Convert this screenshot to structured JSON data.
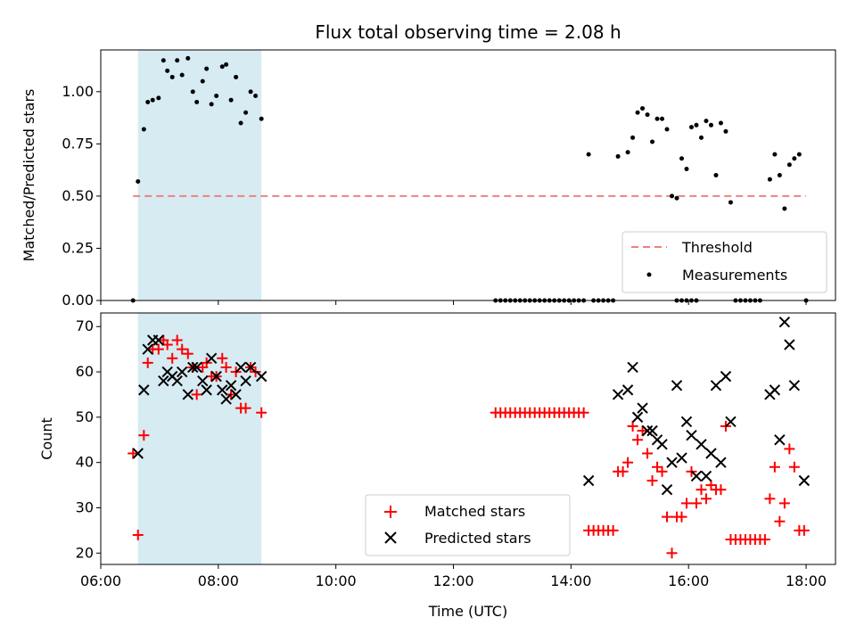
{
  "chart_data": [
    {
      "type": "scatter",
      "title": "Flux total observing time = 2.08 h",
      "ylabel": "Matched/Predicted stars",
      "xlabel": "",
      "xlim": [
        "06:00",
        "18:30"
      ],
      "ylim": [
        0,
        1.2
      ],
      "yticks": [
        "0.00",
        "0.25",
        "0.50",
        "0.75",
        "1.00"
      ],
      "shaded_interval": [
        "06:38",
        "08:44"
      ],
      "legend_position": "lower-right",
      "legend": {
        "threshold": "Threshold",
        "measurements": "Measurements"
      },
      "threshold": {
        "name": "Threshold",
        "value": 0.5,
        "x_range": [
          "06:33",
          "18:00"
        ],
        "color": "#f08080"
      },
      "series": [
        {
          "name": "Measurements",
          "color": "#000000",
          "points": [
            [
              "06:33",
              0.0
            ],
            [
              "06:38",
              0.57
            ],
            [
              "06:44",
              0.82
            ],
            [
              "06:48",
              0.95
            ],
            [
              "06:53",
              0.96
            ],
            [
              "06:59",
              0.97
            ],
            [
              "07:04",
              1.15
            ],
            [
              "07:08",
              1.1
            ],
            [
              "07:13",
              1.07
            ],
            [
              "07:18",
              1.15
            ],
            [
              "07:23",
              1.08
            ],
            [
              "07:29",
              1.16
            ],
            [
              "07:34",
              1.0
            ],
            [
              "07:38",
              0.95
            ],
            [
              "07:44",
              1.05
            ],
            [
              "07:48",
              1.11
            ],
            [
              "07:53",
              0.94
            ],
            [
              "07:58",
              0.98
            ],
            [
              "08:04",
              1.12
            ],
            [
              "08:08",
              1.13
            ],
            [
              "08:13",
              0.96
            ],
            [
              "08:18",
              1.07
            ],
            [
              "08:23",
              0.85
            ],
            [
              "08:28",
              0.9
            ],
            [
              "08:33",
              1.0
            ],
            [
              "08:38",
              0.98
            ],
            [
              "08:44",
              0.87
            ],
            [
              "14:18",
              0.7
            ],
            [
              "14:48",
              0.69
            ],
            [
              "14:58",
              0.71
            ],
            [
              "15:03",
              0.78
            ],
            [
              "15:08",
              0.9
            ],
            [
              "15:13",
              0.92
            ],
            [
              "15:18",
              0.89
            ],
            [
              "15:23",
              0.76
            ],
            [
              "15:28",
              0.87
            ],
            [
              "15:33",
              0.87
            ],
            [
              "15:38",
              0.82
            ],
            [
              "15:43",
              0.5
            ],
            [
              "15:48",
              0.49
            ],
            [
              "15:53",
              0.68
            ],
            [
              "15:58",
              0.63
            ],
            [
              "16:03",
              0.83
            ],
            [
              "16:08",
              0.84
            ],
            [
              "16:13",
              0.78
            ],
            [
              "16:18",
              0.86
            ],
            [
              "16:23",
              0.84
            ],
            [
              "16:28",
              0.6
            ],
            [
              "16:33",
              0.85
            ],
            [
              "16:38",
              0.81
            ],
            [
              "16:43",
              0.47
            ],
            [
              "17:23",
              0.58
            ],
            [
              "17:28",
              0.7
            ],
            [
              "17:33",
              0.6
            ],
            [
              "17:38",
              0.44
            ],
            [
              "17:43",
              0.65
            ],
            [
              "17:48",
              0.68
            ],
            [
              "17:53",
              0.7
            ],
            [
              "12:43",
              0
            ],
            [
              "12:48",
              0
            ],
            [
              "12:53",
              0
            ],
            [
              "12:58",
              0
            ],
            [
              "13:03",
              0
            ],
            [
              "13:08",
              0
            ],
            [
              "13:13",
              0
            ],
            [
              "13:18",
              0
            ],
            [
              "13:23",
              0
            ],
            [
              "13:28",
              0
            ],
            [
              "13:33",
              0
            ],
            [
              "13:38",
              0
            ],
            [
              "13:43",
              0
            ],
            [
              "13:48",
              0
            ],
            [
              "13:53",
              0
            ],
            [
              "13:58",
              0
            ],
            [
              "14:03",
              0
            ],
            [
              "14:08",
              0
            ],
            [
              "14:13",
              0
            ],
            [
              "14:23",
              0
            ],
            [
              "14:28",
              0
            ],
            [
              "14:33",
              0
            ],
            [
              "14:38",
              0
            ],
            [
              "14:43",
              0
            ],
            [
              "15:48",
              0
            ],
            [
              "15:53",
              0
            ],
            [
              "15:58",
              0
            ],
            [
              "16:03",
              0
            ],
            [
              "16:08",
              0
            ],
            [
              "16:48",
              0
            ],
            [
              "16:53",
              0
            ],
            [
              "16:58",
              0
            ],
            [
              "17:03",
              0
            ],
            [
              "17:08",
              0
            ],
            [
              "17:13",
              0
            ],
            [
              "18:00",
              0
            ]
          ]
        }
      ]
    },
    {
      "type": "scatter",
      "title": "",
      "xlabel": "Time (UTC)",
      "ylabel": "Count",
      "xlim": [
        "06:00",
        "18:30"
      ],
      "ylim": [
        17.5,
        73
      ],
      "xticks": [
        "06:00",
        "08:00",
        "10:00",
        "12:00",
        "14:00",
        "16:00",
        "18:00"
      ],
      "yticks": [
        "20",
        "30",
        "40",
        "50",
        "60",
        "70"
      ],
      "shaded_interval": [
        "06:38",
        "08:44"
      ],
      "legend_position": "lower-center",
      "legend": {
        "matched": "Matched stars",
        "predicted": "Predicted stars"
      },
      "series": [
        {
          "name": "Matched stars",
          "marker": "plus",
          "color": "#ff0000",
          "points": [
            [
              "06:33",
              42
            ],
            [
              "06:38",
              24
            ],
            [
              "06:44",
              46
            ],
            [
              "06:48",
              62
            ],
            [
              "06:53",
              65
            ],
            [
              "06:59",
              65
            ],
            [
              "07:04",
              67
            ],
            [
              "07:08",
              66
            ],
            [
              "07:13",
              63
            ],
            [
              "07:18",
              67
            ],
            [
              "07:23",
              65
            ],
            [
              "07:29",
              64
            ],
            [
              "07:34",
              61
            ],
            [
              "07:38",
              55
            ],
            [
              "07:44",
              61
            ],
            [
              "07:48",
              62
            ],
            [
              "07:53",
              59
            ],
            [
              "07:58",
              59
            ],
            [
              "08:04",
              63
            ],
            [
              "08:08",
              61
            ],
            [
              "08:13",
              55
            ],
            [
              "08:18",
              60
            ],
            [
              "08:23",
              52
            ],
            [
              "08:28",
              52
            ],
            [
              "08:33",
              61
            ],
            [
              "08:38",
              60
            ],
            [
              "08:44",
              51
            ],
            [
              "12:43",
              51
            ],
            [
              "12:48",
              51
            ],
            [
              "12:53",
              51
            ],
            [
              "12:58",
              51
            ],
            [
              "13:03",
              51
            ],
            [
              "13:08",
              51
            ],
            [
              "13:13",
              51
            ],
            [
              "13:18",
              51
            ],
            [
              "13:23",
              51
            ],
            [
              "13:28",
              51
            ],
            [
              "13:33",
              51
            ],
            [
              "13:38",
              51
            ],
            [
              "13:43",
              51
            ],
            [
              "13:48",
              51
            ],
            [
              "13:53",
              51
            ],
            [
              "13:58",
              51
            ],
            [
              "14:03",
              51
            ],
            [
              "14:08",
              51
            ],
            [
              "14:13",
              51
            ],
            [
              "14:18",
              25
            ],
            [
              "14:23",
              25
            ],
            [
              "14:28",
              25
            ],
            [
              "14:33",
              25
            ],
            [
              "14:38",
              25
            ],
            [
              "14:43",
              25
            ],
            [
              "14:48",
              38
            ],
            [
              "14:53",
              38
            ],
            [
              "14:58",
              40
            ],
            [
              "15:03",
              48
            ],
            [
              "15:08",
              45
            ],
            [
              "15:13",
              47
            ],
            [
              "15:18",
              42
            ],
            [
              "15:23",
              36
            ],
            [
              "15:28",
              39
            ],
            [
              "15:33",
              38
            ],
            [
              "15:38",
              28
            ],
            [
              "15:43",
              20
            ],
            [
              "15:48",
              28
            ],
            [
              "15:53",
              28
            ],
            [
              "15:58",
              31
            ],
            [
              "16:03",
              38
            ],
            [
              "16:08",
              31
            ],
            [
              "16:13",
              34
            ],
            [
              "16:18",
              32
            ],
            [
              "16:23",
              35
            ],
            [
              "16:28",
              34
            ],
            [
              "16:33",
              34
            ],
            [
              "16:38",
              48
            ],
            [
              "16:43",
              23
            ],
            [
              "16:48",
              23
            ],
            [
              "16:53",
              23
            ],
            [
              "16:58",
              23
            ],
            [
              "17:03",
              23
            ],
            [
              "17:08",
              23
            ],
            [
              "17:13",
              23
            ],
            [
              "17:18",
              23
            ],
            [
              "17:23",
              32
            ],
            [
              "17:28",
              39
            ],
            [
              "17:33",
              27
            ],
            [
              "17:38",
              31
            ],
            [
              "17:43",
              43
            ],
            [
              "17:48",
              39
            ],
            [
              "17:53",
              25
            ],
            [
              "17:58",
              25
            ]
          ]
        },
        {
          "name": "Predicted stars",
          "marker": "cross",
          "color": "#000000",
          "points": [
            [
              "06:38",
              42
            ],
            [
              "06:44",
              56
            ],
            [
              "06:48",
              65
            ],
            [
              "06:53",
              67
            ],
            [
              "06:59",
              67
            ],
            [
              "07:04",
              58
            ],
            [
              "07:08",
              60
            ],
            [
              "07:13",
              59
            ],
            [
              "07:18",
              58
            ],
            [
              "07:23",
              60
            ],
            [
              "07:29",
              55
            ],
            [
              "07:34",
              61
            ],
            [
              "07:38",
              61
            ],
            [
              "07:44",
              58
            ],
            [
              "07:48",
              56
            ],
            [
              "07:53",
              63
            ],
            [
              "07:58",
              59
            ],
            [
              "08:04",
              56
            ],
            [
              "08:08",
              54
            ],
            [
              "08:13",
              57
            ],
            [
              "08:18",
              55
            ],
            [
              "08:23",
              61
            ],
            [
              "08:28",
              58
            ],
            [
              "08:33",
              61
            ],
            [
              "08:44",
              59
            ],
            [
              "14:18",
              36
            ],
            [
              "14:48",
              55
            ],
            [
              "14:58",
              56
            ],
            [
              "15:03",
              61
            ],
            [
              "15:08",
              50
            ],
            [
              "15:13",
              52
            ],
            [
              "15:18",
              47
            ],
            [
              "15:23",
              47
            ],
            [
              "15:28",
              45
            ],
            [
              "15:33",
              44
            ],
            [
              "15:38",
              34
            ],
            [
              "15:43",
              40
            ],
            [
              "15:48",
              57
            ],
            [
              "15:53",
              41
            ],
            [
              "15:58",
              49
            ],
            [
              "16:03",
              46
            ],
            [
              "16:08",
              37
            ],
            [
              "16:13",
              44
            ],
            [
              "16:18",
              37
            ],
            [
              "16:23",
              42
            ],
            [
              "16:28",
              57
            ],
            [
              "16:33",
              40
            ],
            [
              "16:38",
              59
            ],
            [
              "16:43",
              49
            ],
            [
              "17:23",
              55
            ],
            [
              "17:28",
              56
            ],
            [
              "17:33",
              45
            ],
            [
              "17:38",
              71
            ],
            [
              "17:43",
              66
            ],
            [
              "17:48",
              57
            ],
            [
              "17:58",
              36
            ]
          ]
        }
      ]
    }
  ]
}
